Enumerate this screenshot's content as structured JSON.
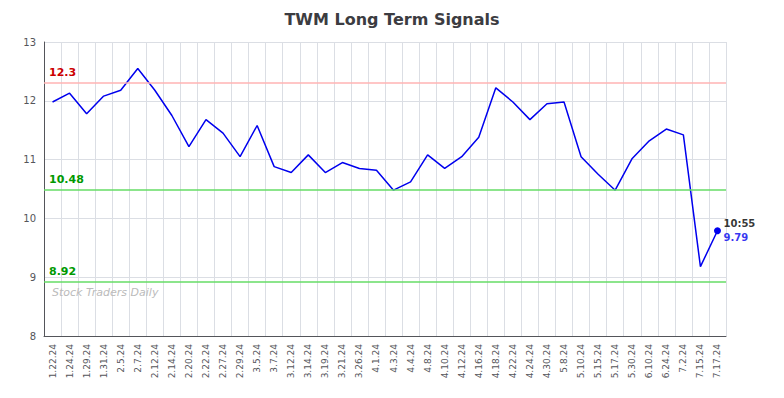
{
  "chart_data": {
    "type": "line",
    "title": "TWM Long Term Signals",
    "categories": [
      "1.22.24",
      "1.24.24",
      "1.29.24",
      "1.31.24",
      "2.5.24",
      "2.7.24",
      "2.12.24",
      "2.14.24",
      "2.20.24",
      "2.22.24",
      "2.27.24",
      "2.29.24",
      "3.5.24",
      "3.7.24",
      "3.12.24",
      "3.14.24",
      "3.19.24",
      "3.21.24",
      "3.26.24",
      "4.1.24",
      "4.3.24",
      "4.4.24",
      "4.8.24",
      "4.10.24",
      "4.12.24",
      "4.16.24",
      "4.18.24",
      "4.22.24",
      "4.24.24",
      "4.30.24",
      "5.8.24",
      "5.10.24",
      "5.15.24",
      "5.17.24",
      "5.30.24",
      "6.10.24",
      "6.24.24",
      "7.2.24",
      "7.15.24",
      "7.17.24"
    ],
    "values": [
      11.98,
      12.13,
      11.78,
      12.08,
      12.18,
      12.55,
      12.18,
      11.75,
      11.22,
      11.68,
      11.45,
      11.05,
      11.58,
      10.88,
      10.78,
      11.08,
      10.78,
      10.95,
      10.85,
      10.82,
      10.48,
      10.62,
      11.08,
      10.85,
      11.05,
      11.38,
      12.22,
      11.98,
      11.68,
      11.95,
      11.98,
      11.05,
      10.75,
      10.48,
      11.02,
      11.32,
      11.52,
      11.42,
      9.18,
      9.79
    ],
    "color": "#0000EE",
    "marker": "circle",
    "hlines": [
      {
        "value": 12.3,
        "label": "12.3",
        "color": "#FFB3B3",
        "label_color": "#CC0000"
      },
      {
        "value": 10.48,
        "label": "10.48",
        "color": "#66DD66",
        "label_color": "#009900"
      },
      {
        "value": 8.92,
        "label": "8.92",
        "color": "#66DD66",
        "label_color": "#009900"
      }
    ],
    "annotations": [
      {
        "text": "10:55",
        "x": "7.17.24",
        "y": 9.79,
        "color": "#000000"
      },
      {
        "text": "9.79",
        "x": "7.17.24",
        "y": 9.79,
        "color": "#0000EE"
      }
    ],
    "watermark": {
      "text": "Stock Traders Daily",
      "color": "#BBBBBB"
    },
    "ylim": [
      8.0,
      13.0
    ],
    "yticks": [
      8,
      9,
      10,
      11,
      12,
      13
    ],
    "grid": true
  }
}
